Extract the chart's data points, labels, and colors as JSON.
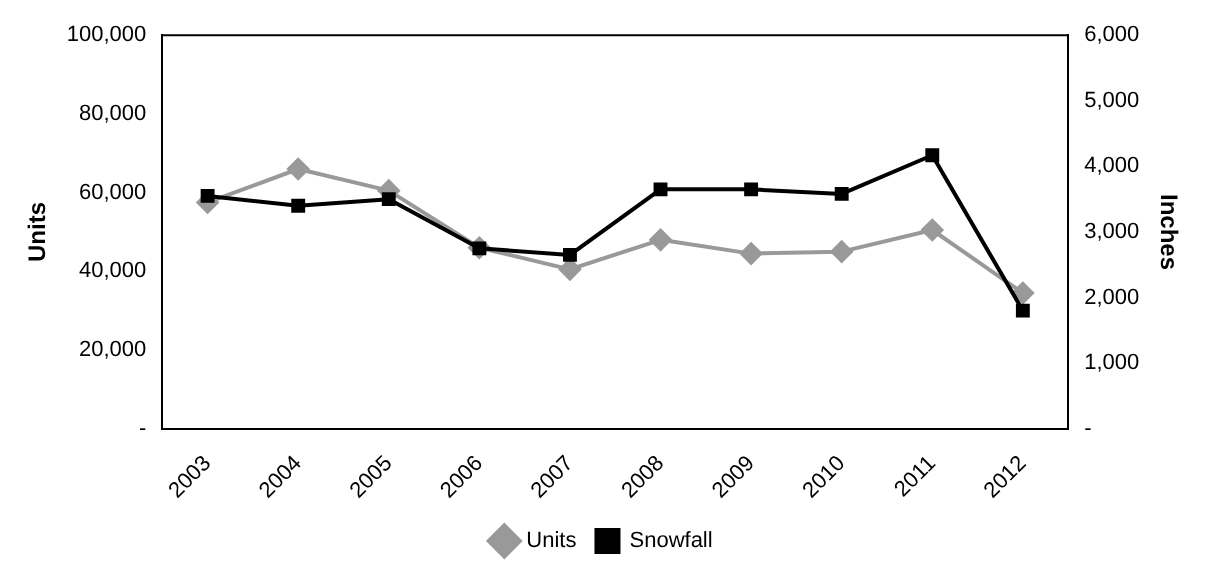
{
  "chart_data": {
    "type": "line",
    "categories": [
      "2003",
      "2004",
      "2005",
      "2006",
      "2007",
      "2008",
      "2009",
      "2010",
      "2011",
      "2012"
    ],
    "ylabel": "Units",
    "y2label": "Inches",
    "series": [
      {
        "name": "Units",
        "color": "#999999",
        "marker": "diamond",
        "values": [
          57500,
          66000,
          60500,
          46000,
          40500,
          48000,
          44500,
          45000,
          50500,
          34500
        ]
      },
      {
        "name": "Snowfall",
        "color": "#000000",
        "marker": "square",
        "axis": "y2",
        "values": [
          3550,
          3400,
          3500,
          2750,
          2650,
          3650,
          3650,
          3580,
          4170,
          1800
        ]
      }
    ],
    "ylim": [
      0,
      100000
    ],
    "yticks": [
      {
        "value": 0,
        "label": "-"
      },
      {
        "value": 20000,
        "label": "20,000"
      },
      {
        "value": 40000,
        "label": "40,000"
      },
      {
        "value": 60000,
        "label": "60,000"
      },
      {
        "value": 80000,
        "label": "80,000"
      },
      {
        "value": 100000,
        "label": "100,000"
      }
    ],
    "y2lim": [
      0,
      6000
    ],
    "y2ticks": [
      {
        "value": 0,
        "label": "-"
      },
      {
        "value": 1000,
        "label": "1,000"
      },
      {
        "value": 2000,
        "label": "2,000"
      },
      {
        "value": 3000,
        "label": "3,000"
      },
      {
        "value": 4000,
        "label": "4,000"
      },
      {
        "value": 5000,
        "label": "5,000"
      },
      {
        "value": 6000,
        "label": "6,000"
      }
    ],
    "grid": false,
    "legend": "bottom",
    "line_style": "solid"
  }
}
